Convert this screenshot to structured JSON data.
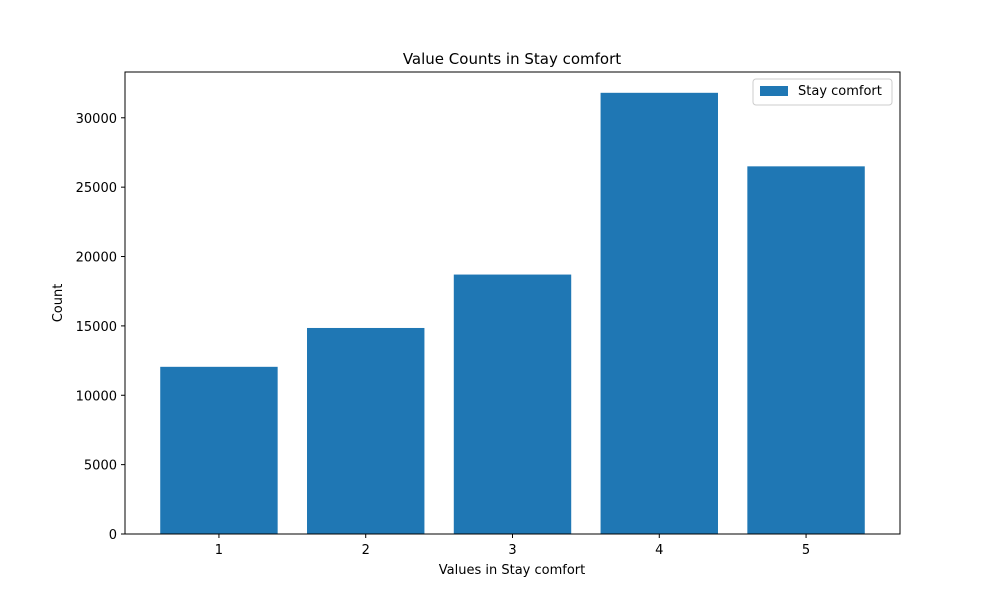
{
  "chart_data": {
    "type": "bar",
    "title": "Value Counts in Stay comfort",
    "xlabel": "Values in Stay comfort",
    "ylabel": "Count",
    "categories": [
      "1",
      "2",
      "3",
      "4",
      "5"
    ],
    "series": [
      {
        "name": "Stay comfort",
        "values": [
          12050,
          14850,
          18700,
          31800,
          26500
        ],
        "color": "#1f77b4"
      }
    ],
    "ylim": [
      0,
      33300
    ],
    "yticks": [
      0,
      5000,
      10000,
      15000,
      20000,
      25000,
      30000
    ],
    "grid": false,
    "legend": {
      "placement": "top-right"
    }
  }
}
